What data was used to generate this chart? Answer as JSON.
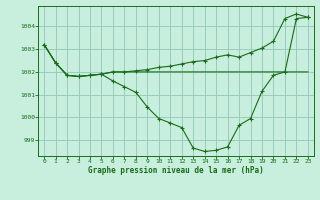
{
  "title": "Graphe pression niveau de la mer (hPa)",
  "background_color": "#c8eedd",
  "grid_color": "#99ccbb",
  "line_color": "#1a6b1a",
  "marker_color": "#1a6b1a",
  "xlim": [
    -0.5,
    23.5
  ],
  "ylim": [
    998.3,
    1004.9
  ],
  "yticks": [
    999,
    1000,
    1001,
    1002,
    1003,
    1004
  ],
  "xticks": [
    0,
    1,
    2,
    3,
    4,
    5,
    6,
    7,
    8,
    9,
    10,
    11,
    12,
    13,
    14,
    15,
    16,
    17,
    18,
    19,
    20,
    21,
    22,
    23
  ],
  "line1_x": [
    0,
    1,
    2,
    3,
    4,
    5,
    6,
    23
  ],
  "line1_y": [
    1003.2,
    1002.4,
    1001.85,
    1001.8,
    1001.85,
    1001.9,
    1002.0,
    1002.0
  ],
  "line2_x": [
    0,
    1,
    2,
    3,
    4,
    5,
    6,
    7,
    8,
    9,
    10,
    11,
    12,
    13,
    14,
    15,
    16,
    17,
    18,
    19,
    20,
    21,
    22,
    23
  ],
  "line2_y": [
    1003.2,
    1002.4,
    1001.85,
    1001.8,
    1001.85,
    1001.9,
    1002.0,
    1002.0,
    1002.05,
    1002.1,
    1002.2,
    1002.25,
    1002.35,
    1002.45,
    1002.5,
    1002.65,
    1002.75,
    1002.65,
    1002.85,
    1003.05,
    1003.35,
    1004.35,
    1004.55,
    1004.4
  ],
  "line3_x": [
    0,
    1,
    2,
    3,
    4,
    5,
    6,
    7,
    8,
    9,
    10,
    11,
    12,
    13,
    14,
    15,
    16,
    17,
    18,
    19,
    20,
    21,
    22,
    23
  ],
  "line3_y": [
    1003.2,
    1002.4,
    1001.85,
    1001.8,
    1001.85,
    1001.9,
    1001.6,
    1001.35,
    1001.1,
    1000.45,
    999.95,
    999.75,
    999.55,
    998.65,
    998.5,
    998.55,
    998.7,
    999.65,
    999.95,
    1001.15,
    1001.85,
    1002.0,
    1004.35,
    1004.4
  ]
}
